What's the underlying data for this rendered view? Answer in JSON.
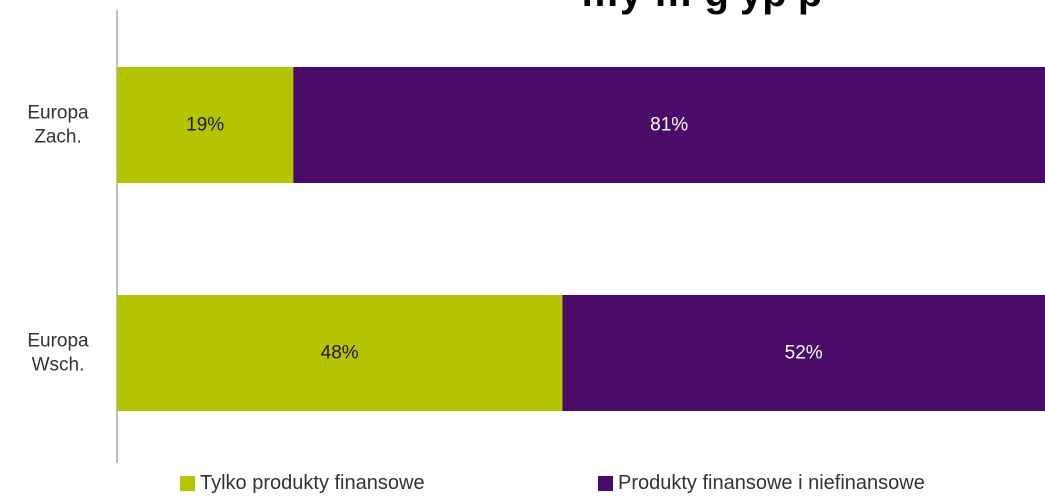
{
  "chart_data": {
    "type": "bar",
    "orientation": "horizontal",
    "stacked": true,
    "normalized": true,
    "title": "…y … g yp p",
    "categories": [
      [
        "Europa",
        "Zach."
      ],
      [
        "Europa",
        "Wsch."
      ]
    ],
    "series": [
      {
        "name": "Tylko produkty finansowe",
        "color": "#b4c400",
        "label_color": "#1a1a1a",
        "values": [
          19,
          48
        ]
      },
      {
        "name": "Produkty finansowe i niefinansowe",
        "color": "#4a0b68",
        "label_color": "#ffffff",
        "values": [
          81,
          52
        ]
      }
    ],
    "value_suffix": "%",
    "xlim": [
      0,
      100
    ],
    "grid": false,
    "legend_position": "bottom"
  }
}
